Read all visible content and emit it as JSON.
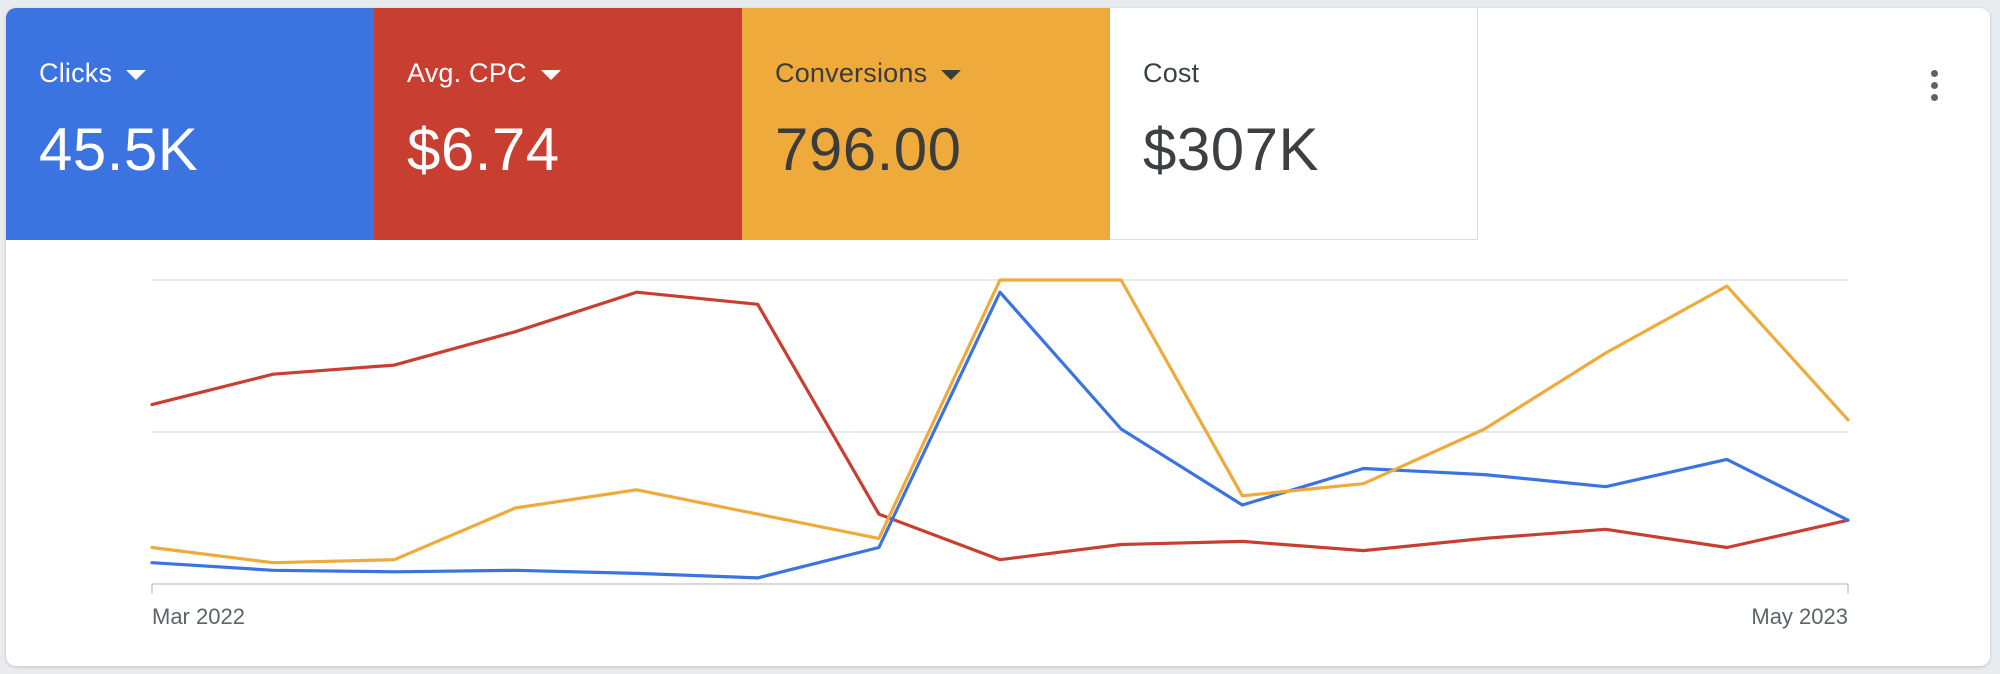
{
  "metrics": [
    {
      "label": "Clicks",
      "value": "45.5K",
      "color": "#3b73e0",
      "text_color": "#ffffff",
      "has_dropdown": true
    },
    {
      "label": "Avg. CPC",
      "value": "$6.74",
      "color": "#c83f31",
      "text_color": "#ffffff",
      "has_dropdown": true
    },
    {
      "label": "Conversions",
      "value": "796.00",
      "color": "#efaa3c",
      "text_color": "#3c3c3c",
      "has_dropdown": true
    },
    {
      "label": "Cost",
      "value": "$307K",
      "color": "#ffffff",
      "text_color": "#3c4043",
      "has_dropdown": false
    }
  ],
  "menu": {
    "icon": "more-vert-icon"
  },
  "chart_data": {
    "type": "line",
    "title": "",
    "xlabel": "",
    "ylabel": "",
    "x_tick_labels": [
      "Mar 2022",
      "May 2023"
    ],
    "x_count": 15,
    "ylim": [
      0,
      100
    ],
    "gridlines": 3,
    "series": [
      {
        "metric": "Avg. CPC",
        "color": "#c83f31",
        "values": [
          59,
          69,
          72,
          83,
          96,
          92,
          23,
          8,
          13,
          14,
          11,
          15,
          18,
          12,
          21
        ]
      },
      {
        "metric": "Clicks",
        "color": "#3b73e0",
        "values": [
          7,
          4.5,
          4,
          4.5,
          3.5,
          2,
          12,
          96,
          51,
          26,
          38,
          36,
          32,
          41,
          21
        ]
      },
      {
        "metric": "Conversions",
        "color": "#efaa3c",
        "values": [
          12,
          7,
          8,
          25,
          31,
          23,
          15,
          100,
          100,
          29,
          33,
          51,
          76,
          98,
          54
        ]
      }
    ]
  }
}
